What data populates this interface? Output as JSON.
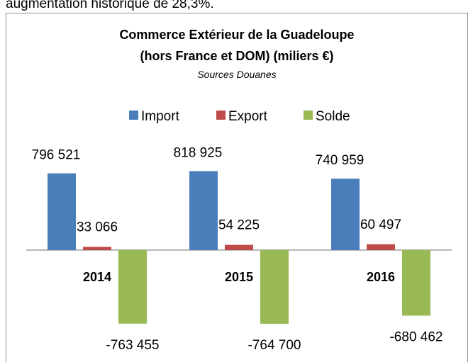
{
  "page_text": "augmentation historique de 28,3%.",
  "chart_data": {
    "type": "bar",
    "title": [
      "Commerce Extérieur de la Guadeloupe",
      "(hors France et DOM)  (miliers €)"
    ],
    "subtitle": "Sources Douanes",
    "categories": [
      "2014",
      "2015",
      "2016"
    ],
    "series": [
      {
        "name": "Import",
        "color": "#4a7ebb",
        "values": [
          796521,
          818925,
          740959
        ],
        "value_labels": [
          "796 521",
          "818 925",
          "740 959"
        ]
      },
      {
        "name": "Export",
        "color": "#be4b48",
        "values": [
          33066,
          54225,
          60497
        ],
        "value_labels": [
          "33 066",
          "54 225",
          "60 497"
        ]
      },
      {
        "name": "Solde",
        "color": "#98b954",
        "values": [
          -763455,
          -764700,
          -680462
        ],
        "value_labels": [
          "-763 455",
          "-764 700",
          "-680 462"
        ]
      }
    ]
  }
}
